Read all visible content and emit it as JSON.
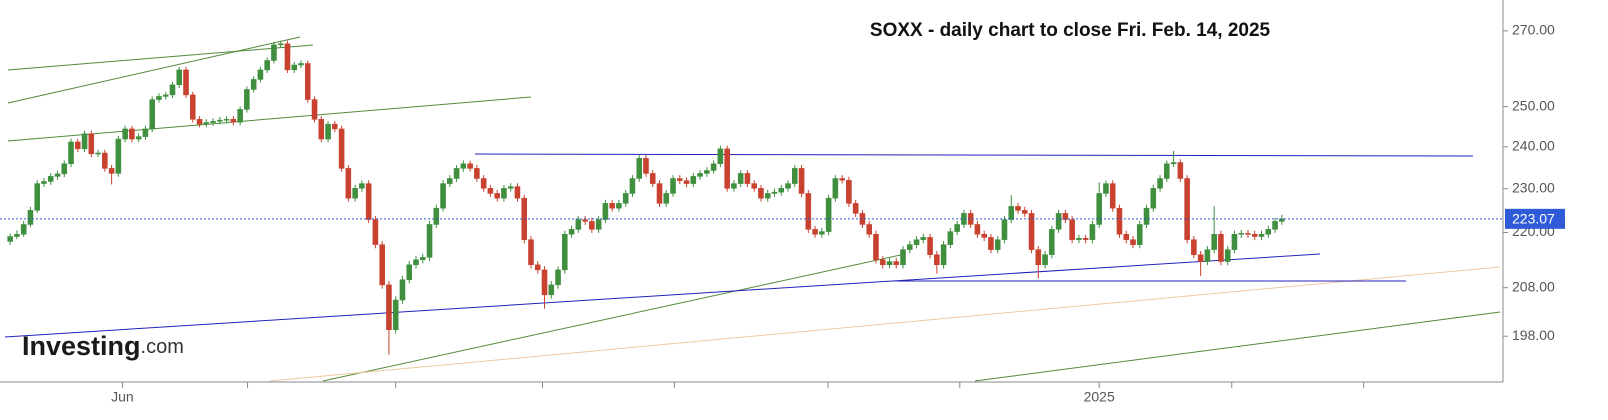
{
  "chart_data": {
    "type": "candlestick",
    "title": "SOXX - daily chart to close Fri. Feb. 14, 2025",
    "watermark": {
      "brand": "Investing",
      "suffix": ".com"
    },
    "log_scale": true,
    "ylim": [
      189,
      278.6
    ],
    "yticks": [
      {
        "value": 198,
        "label": "198.00"
      },
      {
        "value": 208,
        "label": "208.00"
      },
      {
        "value": 220,
        "label": "220.00"
      },
      {
        "value": 230,
        "label": "230.00"
      },
      {
        "value": 240,
        "label": "240.00"
      },
      {
        "value": 250,
        "label": "250.00"
      },
      {
        "value": 270,
        "label": "270.00"
      }
    ],
    "xlim": [
      -1.5,
      220.7
    ],
    "xticks": [
      {
        "value": 16.6,
        "label": "Jun"
      },
      {
        "value": 161,
        "label": "2025"
      }
    ],
    "xtick_marks": [
      16.6,
      35.1,
      57,
      78.7,
      98.2,
      120.9,
      140.4,
      161,
      180.6,
      200.1
    ],
    "last_price": 223.07,
    "last_price_color": "#2f5bd8",
    "up_color": "#3f8f3f",
    "down_color": "#c9412f",
    "ohlc": [
      [
        218.0,
        219.8,
        217.2,
        219.1
      ],
      [
        219.1,
        220.5,
        218.5,
        219.6
      ],
      [
        219.6,
        222.6,
        219.0,
        221.8
      ],
      [
        221.8,
        225.8,
        221.2,
        225.0
      ],
      [
        225.0,
        232.0,
        224.4,
        231.2
      ],
      [
        231.2,
        232.5,
        230.4,
        231.7
      ],
      [
        231.7,
        233.7,
        230.9,
        232.9
      ],
      [
        232.9,
        234.3,
        232.1,
        233.5
      ],
      [
        233.5,
        236.7,
        232.7,
        235.9
      ],
      [
        235.9,
        242.0,
        235.1,
        241.2
      ],
      [
        241.2,
        242.0,
        238.7,
        239.5
      ],
      [
        239.5,
        244.0,
        238.7,
        243.2
      ],
      [
        243.2,
        244.0,
        237.5,
        238.3
      ],
      [
        238.3,
        239.3,
        237.5,
        238.5
      ],
      [
        238.5,
        239.3,
        234.0,
        234.8
      ],
      [
        234.8,
        235.6,
        231.0,
        233.6
      ],
      [
        233.6,
        242.7,
        232.8,
        241.9
      ],
      [
        241.9,
        245.2,
        241.1,
        244.4
      ],
      [
        244.4,
        245.2,
        241.1,
        241.9
      ],
      [
        241.9,
        243.3,
        241.1,
        242.5
      ],
      [
        242.5,
        245.2,
        241.7,
        244.4
      ],
      [
        244.4,
        252.6,
        243.6,
        251.8
      ],
      [
        251.8,
        253.4,
        251.0,
        252.6
      ],
      [
        252.6,
        253.8,
        251.8,
        253.0
      ],
      [
        253.0,
        256.4,
        252.2,
        255.6
      ],
      [
        255.6,
        260.3,
        254.8,
        259.5
      ],
      [
        259.5,
        260.3,
        252.2,
        253.0
      ],
      [
        253.0,
        253.8,
        246.0,
        246.8
      ],
      [
        246.8,
        247.6,
        244.8,
        245.6
      ],
      [
        245.6,
        246.8,
        244.8,
        246.0
      ],
      [
        246.0,
        247.1,
        245.2,
        246.3
      ],
      [
        246.3,
        247.4,
        245.5,
        246.6
      ],
      [
        246.6,
        247.6,
        245.8,
        246.8
      ],
      [
        246.8,
        247.6,
        245.3,
        246.1
      ],
      [
        246.1,
        250.1,
        245.3,
        249.3
      ],
      [
        249.3,
        255.2,
        248.5,
        254.4
      ],
      [
        254.4,
        257.8,
        253.6,
        257.0
      ],
      [
        257.0,
        260.3,
        256.2,
        259.5
      ],
      [
        259.5,
        262.8,
        258.7,
        262.0
      ],
      [
        262.0,
        267.0,
        261.2,
        266.2
      ],
      [
        266.2,
        267.3,
        265.4,
        266.5
      ],
      [
        266.5,
        267.3,
        258.7,
        259.5
      ],
      [
        259.5,
        261.6,
        258.7,
        260.8
      ],
      [
        260.8,
        262.0,
        260.0,
        261.2
      ],
      [
        261.2,
        262.0,
        251.0,
        251.8
      ],
      [
        251.8,
        252.6,
        246.0,
        246.8
      ],
      [
        246.8,
        247.6,
        241.1,
        241.9
      ],
      [
        241.9,
        246.4,
        241.1,
        245.6
      ],
      [
        245.6,
        246.4,
        243.6,
        244.4
      ],
      [
        244.4,
        245.2,
        234.0,
        234.8
      ],
      [
        234.8,
        235.6,
        227.0,
        227.8
      ],
      [
        227.8,
        230.9,
        227.0,
        230.1
      ],
      [
        230.1,
        232.0,
        229.3,
        231.2
      ],
      [
        231.2,
        232.0,
        222.1,
        222.9
      ],
      [
        222.9,
        223.7,
        216.5,
        217.3
      ],
      [
        217.3,
        218.1,
        207.8,
        208.6
      ],
      [
        208.6,
        209.4,
        194.3,
        199.3
      ],
      [
        199.3,
        206.2,
        198.5,
        205.4
      ],
      [
        205.4,
        210.5,
        204.6,
        209.7
      ],
      [
        209.7,
        213.7,
        208.9,
        212.9
      ],
      [
        212.9,
        214.8,
        212.1,
        214.0
      ],
      [
        214.0,
        215.3,
        213.2,
        214.5
      ],
      [
        214.5,
        222.6,
        213.7,
        221.8
      ],
      [
        221.8,
        226.3,
        221.0,
        225.5
      ],
      [
        225.5,
        232.0,
        224.7,
        231.2
      ],
      [
        231.2,
        233.2,
        230.4,
        232.4
      ],
      [
        232.4,
        235.6,
        231.6,
        234.8
      ],
      [
        234.8,
        236.7,
        234.0,
        235.9
      ],
      [
        235.9,
        236.7,
        234.0,
        234.8
      ],
      [
        234.8,
        235.6,
        231.6,
        232.4
      ],
      [
        232.4,
        233.2,
        229.3,
        230.1
      ],
      [
        230.1,
        230.9,
        228.1,
        228.9
      ],
      [
        228.9,
        229.7,
        227.0,
        227.8
      ],
      [
        227.8,
        230.9,
        227.0,
        230.1
      ],
      [
        230.1,
        231.3,
        229.3,
        230.5
      ],
      [
        230.5,
        231.3,
        227.0,
        227.8
      ],
      [
        227.8,
        228.6,
        217.6,
        218.4
      ],
      [
        218.4,
        219.2,
        212.1,
        212.9
      ],
      [
        212.9,
        213.7,
        211.0,
        211.8
      ],
      [
        211.8,
        212.6,
        203.6,
        206.5
      ],
      [
        206.5,
        209.4,
        205.7,
        208.6
      ],
      [
        208.6,
        212.6,
        207.8,
        211.8
      ],
      [
        211.8,
        220.4,
        211.0,
        219.6
      ],
      [
        219.6,
        221.5,
        218.8,
        220.7
      ],
      [
        220.7,
        223.7,
        219.9,
        222.9
      ],
      [
        222.9,
        223.7,
        221.7,
        222.5
      ],
      [
        222.5,
        223.3,
        219.9,
        220.7
      ],
      [
        220.7,
        223.7,
        219.9,
        222.9
      ],
      [
        222.9,
        227.4,
        222.1,
        226.6
      ],
      [
        226.6,
        227.4,
        224.7,
        225.5
      ],
      [
        225.5,
        227.4,
        224.7,
        226.6
      ],
      [
        226.6,
        229.7,
        225.8,
        228.9
      ],
      [
        228.9,
        233.2,
        228.1,
        232.4
      ],
      [
        232.4,
        238.0,
        231.6,
        237.2
      ],
      [
        237.2,
        238.0,
        232.8,
        233.6
      ],
      [
        233.6,
        234.4,
        230.4,
        231.2
      ],
      [
        231.2,
        232.0,
        225.8,
        226.6
      ],
      [
        226.6,
        229.7,
        225.8,
        228.9
      ],
      [
        228.9,
        233.2,
        228.1,
        232.4
      ],
      [
        232.4,
        233.2,
        231.1,
        231.9
      ],
      [
        231.9,
        232.7,
        230.4,
        231.2
      ],
      [
        231.2,
        233.7,
        230.4,
        232.9
      ],
      [
        232.9,
        234.4,
        232.1,
        233.6
      ],
      [
        233.6,
        235.1,
        232.8,
        234.3
      ],
      [
        234.3,
        236.7,
        233.5,
        235.9
      ],
      [
        235.9,
        240.3,
        235.1,
        239.5
      ],
      [
        239.5,
        240.3,
        229.3,
        230.1
      ],
      [
        230.1,
        232.0,
        229.3,
        231.2
      ],
      [
        231.2,
        234.4,
        230.4,
        233.6
      ],
      [
        233.6,
        234.4,
        230.4,
        231.2
      ],
      [
        231.2,
        232.0,
        229.3,
        230.1
      ],
      [
        230.1,
        230.9,
        227.0,
        227.8
      ],
      [
        227.8,
        229.7,
        227.0,
        228.9
      ],
      [
        228.9,
        230.0,
        228.1,
        229.2
      ],
      [
        229.2,
        230.9,
        228.4,
        230.1
      ],
      [
        230.1,
        232.0,
        229.3,
        231.2
      ],
      [
        231.2,
        235.6,
        230.4,
        234.8
      ],
      [
        234.8,
        235.6,
        228.1,
        228.9
      ],
      [
        228.9,
        229.7,
        219.9,
        220.7
      ],
      [
        220.7,
        221.5,
        218.8,
        219.6
      ],
      [
        219.6,
        221.0,
        218.8,
        220.2
      ],
      [
        220.2,
        228.6,
        219.4,
        227.8
      ],
      [
        227.8,
        233.2,
        227.0,
        232.4
      ],
      [
        232.4,
        233.2,
        231.2,
        232.0
      ],
      [
        232.0,
        232.8,
        225.8,
        226.6
      ],
      [
        226.6,
        227.4,
        223.5,
        224.3
      ],
      [
        224.3,
        225.1,
        221.0,
        221.8
      ],
      [
        221.8,
        222.6,
        218.8,
        219.6
      ],
      [
        219.6,
        220.4,
        213.2,
        214.0
      ],
      [
        214.0,
        214.8,
        212.1,
        212.9
      ],
      [
        212.9,
        214.4,
        212.1,
        213.6
      ],
      [
        213.6,
        214.4,
        212.1,
        212.9
      ],
      [
        212.9,
        217.0,
        212.1,
        216.2
      ],
      [
        216.2,
        218.1,
        215.4,
        217.3
      ],
      [
        217.3,
        219.2,
        216.5,
        218.4
      ],
      [
        218.4,
        219.7,
        217.6,
        218.9
      ],
      [
        218.9,
        219.7,
        214.3,
        215.1
      ],
      [
        215.1,
        215.9,
        211.0,
        212.9
      ],
      [
        212.9,
        218.1,
        212.1,
        217.3
      ],
      [
        217.3,
        221.0,
        216.5,
        220.2
      ],
      [
        220.2,
        222.6,
        219.4,
        221.8
      ],
      [
        221.8,
        225.1,
        221.0,
        224.3
      ],
      [
        224.3,
        225.1,
        221.0,
        221.8
      ],
      [
        221.8,
        222.6,
        218.8,
        219.6
      ],
      [
        219.6,
        220.4,
        218.1,
        218.9
      ],
      [
        218.9,
        219.7,
        215.4,
        216.2
      ],
      [
        216.2,
        219.2,
        215.4,
        218.4
      ],
      [
        218.4,
        223.7,
        217.6,
        222.9
      ],
      [
        222.9,
        228.5,
        222.1,
        225.9
      ],
      [
        225.9,
        226.7,
        224.2,
        225.0
      ],
      [
        225.0,
        225.8,
        223.5,
        224.3
      ],
      [
        224.3,
        225.1,
        215.4,
        216.2
      ],
      [
        216.2,
        217.0,
        210.0,
        212.9
      ],
      [
        212.9,
        215.9,
        212.1,
        215.1
      ],
      [
        215.1,
        221.5,
        214.3,
        220.7
      ],
      [
        220.7,
        225.1,
        219.9,
        224.3
      ],
      [
        224.3,
        225.1,
        222.1,
        222.9
      ],
      [
        222.9,
        223.7,
        217.6,
        218.4
      ],
      [
        218.4,
        219.5,
        217.6,
        218.7
      ],
      [
        218.7,
        219.5,
        217.6,
        218.4
      ],
      [
        218.4,
        222.6,
        217.6,
        221.8
      ],
      [
        221.8,
        231.5,
        221.0,
        228.9
      ],
      [
        228.9,
        232.0,
        228.1,
        231.2
      ],
      [
        231.2,
        232.0,
        224.7,
        225.5
      ],
      [
        225.5,
        226.3,
        218.8,
        219.6
      ],
      [
        219.6,
        220.4,
        217.6,
        218.4
      ],
      [
        218.4,
        219.2,
        216.5,
        217.3
      ],
      [
        217.3,
        222.6,
        216.5,
        221.8
      ],
      [
        221.8,
        226.3,
        221.0,
        225.5
      ],
      [
        225.5,
        230.9,
        224.7,
        230.1
      ],
      [
        230.1,
        233.2,
        229.3,
        232.4
      ],
      [
        232.4,
        236.7,
        231.6,
        235.9
      ],
      [
        235.9,
        239.0,
        235.1,
        236.2
      ],
      [
        236.2,
        237.0,
        231.6,
        232.4
      ],
      [
        232.4,
        233.2,
        217.6,
        218.4
      ],
      [
        218.4,
        219.2,
        214.3,
        215.1
      ],
      [
        215.1,
        215.9,
        210.5,
        213.6
      ],
      [
        213.6,
        217.0,
        212.8,
        216.2
      ],
      [
        216.2,
        226.0,
        215.4,
        219.6
      ],
      [
        219.6,
        220.4,
        212.8,
        213.6
      ],
      [
        213.6,
        217.0,
        212.8,
        216.2
      ],
      [
        216.2,
        220.4,
        215.4,
        219.6
      ],
      [
        219.6,
        220.6,
        218.8,
        219.8
      ],
      [
        219.8,
        220.6,
        218.8,
        219.6
      ],
      [
        219.6,
        220.4,
        218.3,
        219.1
      ],
      [
        219.1,
        220.4,
        218.3,
        219.6
      ],
      [
        219.6,
        221.5,
        218.8,
        220.7
      ],
      [
        220.7,
        223.3,
        219.9,
        222.5
      ],
      [
        222.5,
        224.0,
        221.7,
        223.07
      ]
    ]
  }
}
